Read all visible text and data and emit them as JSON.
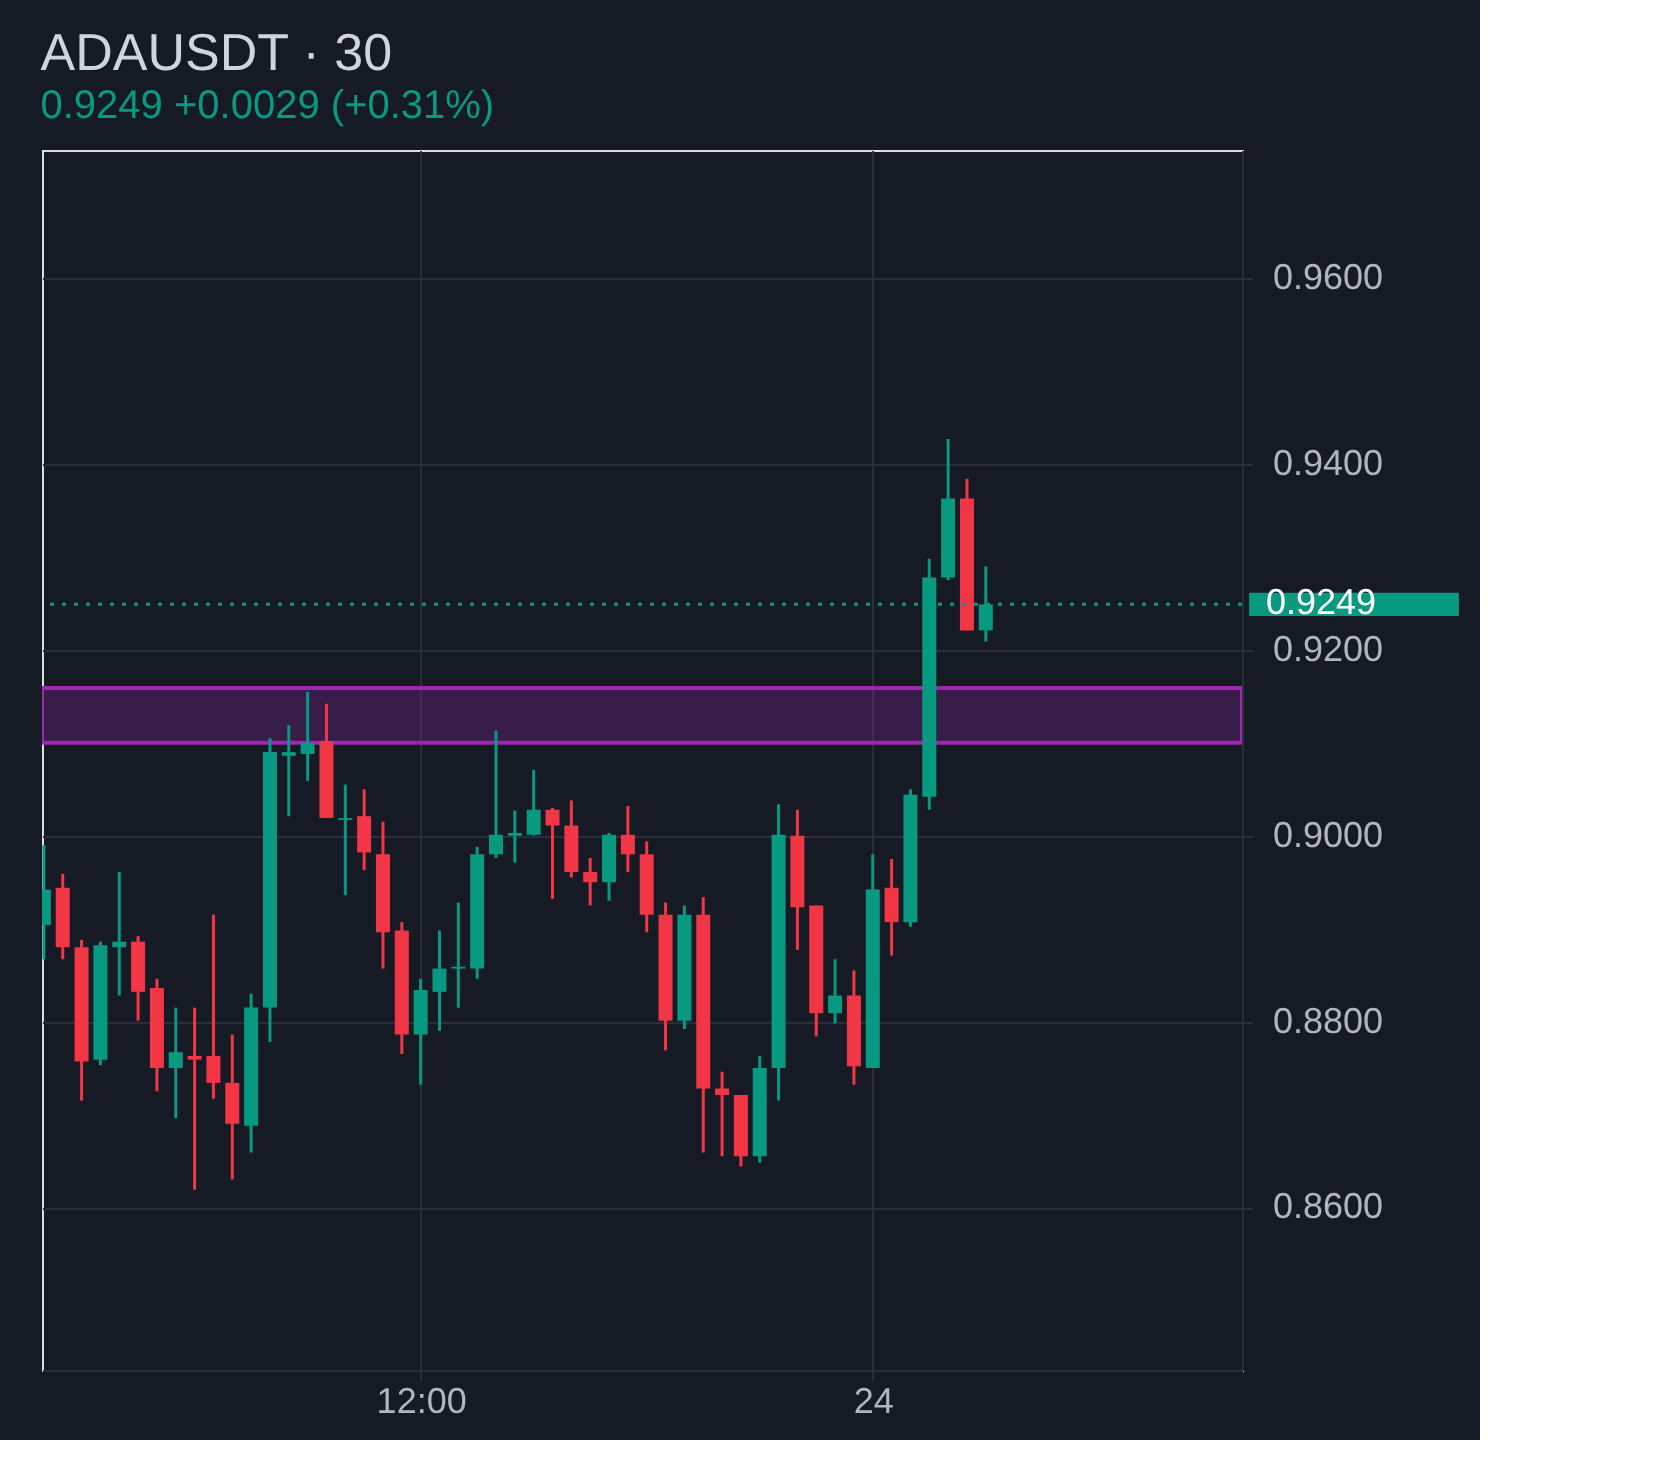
{
  "chart_data": {
    "type": "candlestick",
    "title": "ADAUSDT · 30",
    "subtitle": "0.9249  +0.0029 (+0.31%)",
    "x": [
      2,
      2.5,
      3,
      3.5,
      4,
      4.5,
      5,
      5.5,
      6,
      6.5,
      7,
      7.5,
      8,
      8.5,
      9,
      9.5,
      10,
      10.5,
      11,
      11.5,
      12,
      12.5,
      13,
      13.5,
      14,
      14.5,
      15,
      15.5,
      16,
      16.5,
      17,
      17.5,
      18,
      18.5,
      19,
      19.5,
      20,
      20.5,
      21,
      21.5,
      22,
      22.5,
      23,
      23.5,
      24,
      24.5,
      25,
      25.5,
      26,
      26.5,
      27
    ],
    "ohlc": [
      [
        0.8904,
        0.899,
        0.8867,
        0.8942
      ],
      [
        0.8944,
        0.8959,
        0.8867,
        0.888
      ],
      [
        0.888,
        0.8888,
        0.8715,
        0.8757
      ],
      [
        0.8759,
        0.8886,
        0.8753,
        0.8882
      ],
      [
        0.888,
        0.8961,
        0.8828,
        0.8886
      ],
      [
        0.8886,
        0.8892,
        0.8801,
        0.8832
      ],
      [
        0.8836,
        0.8846,
        0.8725,
        0.875
      ],
      [
        0.875,
        0.8815,
        0.8696,
        0.8767
      ],
      [
        0.8763,
        0.8815,
        0.8619,
        0.8759
      ],
      [
        0.8763,
        0.8915,
        0.8717,
        0.8734
      ],
      [
        0.8734,
        0.8786,
        0.863,
        0.869
      ],
      [
        0.8688,
        0.883,
        0.8659,
        0.8815
      ],
      [
        0.8815,
        0.9105,
        0.8778,
        0.909
      ],
      [
        0.9086,
        0.9119,
        0.9021,
        0.909
      ],
      [
        0.9088,
        0.9155,
        0.9059,
        0.91
      ],
      [
        0.9102,
        0.9142,
        0.9019,
        0.9019
      ],
      [
        0.9017,
        0.9055,
        0.8936,
        0.9019
      ],
      [
        0.9021,
        0.905,
        0.8963,
        0.8982
      ],
      [
        0.898,
        0.9015,
        0.8857,
        0.8896
      ],
      [
        0.8898,
        0.8907,
        0.8765,
        0.8786
      ],
      [
        0.8786,
        0.8846,
        0.8732,
        0.8834
      ],
      [
        0.8832,
        0.8898,
        0.879,
        0.8857
      ],
      [
        0.8857,
        0.8928,
        0.8815,
        0.8859
      ],
      [
        0.8857,
        0.8988,
        0.8846,
        0.898
      ],
      [
        0.898,
        0.9113,
        0.8976,
        0.9001
      ],
      [
        0.9,
        0.9027,
        0.8971,
        0.9003
      ],
      [
        0.9001,
        0.9071,
        0.9,
        0.9028
      ],
      [
        0.9028,
        0.903,
        0.8932,
        0.9011
      ],
      [
        0.9011,
        0.9038,
        0.8955,
        0.8961
      ],
      [
        0.8961,
        0.8976,
        0.8925,
        0.895
      ],
      [
        0.895,
        0.9003,
        0.893,
        0.9001
      ],
      [
        0.9001,
        0.9032,
        0.8961,
        0.898
      ],
      [
        0.898,
        0.8994,
        0.8896,
        0.8915
      ],
      [
        0.8915,
        0.8928,
        0.8769,
        0.8801
      ],
      [
        0.8801,
        0.8925,
        0.8792,
        0.8915
      ],
      [
        0.8915,
        0.8934,
        0.8659,
        0.8728
      ],
      [
        0.8728,
        0.8746,
        0.8655,
        0.8721
      ],
      [
        0.8721,
        0.8721,
        0.8644,
        0.8655
      ],
      [
        0.8655,
        0.8763,
        0.8648,
        0.875
      ],
      [
        0.875,
        0.9034,
        0.8715,
        0.9001
      ],
      [
        0.9,
        0.9028,
        0.8877,
        0.8923
      ],
      [
        0.8925,
        0.8925,
        0.8784,
        0.8809
      ],
      [
        0.8809,
        0.8867,
        0.8798,
        0.8828
      ],
      [
        0.8828,
        0.8855,
        0.8732,
        0.8752
      ],
      [
        0.875,
        0.898,
        0.875,
        0.8942
      ],
      [
        0.8944,
        0.8975,
        0.8871,
        0.8907
      ],
      [
        0.8907,
        0.905,
        0.8902,
        0.9044
      ],
      [
        0.9042,
        0.9298,
        0.9028,
        0.9278
      ],
      [
        0.9278,
        0.9427,
        0.9275,
        0.9363
      ],
      [
        0.9363,
        0.9384,
        0.9221,
        0.9221
      ],
      [
        0.9221,
        0.929,
        0.9209,
        0.9249
      ]
    ],
    "colors": [
      "#089981",
      "#f23645",
      "#f23645",
      "#089981",
      "#089981",
      "#f23645",
      "#f23645",
      "#089981",
      "#f23645",
      "#f23645",
      "#f23645",
      "#089981",
      "#089981",
      "#089981",
      "#089981",
      "#f23645",
      "#089981",
      "#f23645",
      "#f23645",
      "#f23645",
      "#089981",
      "#089981",
      "#089981",
      "#089981",
      "#089981",
      "#089981",
      "#089981",
      "#f23645",
      "#f23645",
      "#f23645",
      "#089981",
      "#f23645",
      "#f23645",
      "#f23645",
      "#089981",
      "#f23645",
      "#f23645",
      "#f23645",
      "#089981",
      "#089981",
      "#f23645",
      "#f23645",
      "#089981",
      "#f23645",
      "#089981",
      "#f23645",
      "#089981",
      "#089981",
      "#089981",
      "#f23645",
      "#089981"
    ],
    "xlim": [
      1.95,
      33.8
    ],
    "xticks": [
      {
        "value": 12,
        "label": "12:00"
      },
      {
        "value": 24,
        "label": "24"
      }
    ],
    "ylim": [
      0.8425,
      0.9738
    ],
    "yticks": [
      {
        "value": 0.86,
        "label": "0.8600"
      },
      {
        "value": 0.88,
        "label": "0.8800"
      },
      {
        "value": 0.9,
        "label": "0.9000"
      },
      {
        "value": 0.92,
        "label": "0.9200"
      },
      {
        "value": 0.94,
        "label": "0.9400"
      },
      {
        "value": 0.96,
        "label": "0.9600"
      }
    ],
    "ref_lines": [
      {
        "axis": "y",
        "value": 0.9249,
        "label": "0.9249",
        "color": "#089981",
        "line_style": "dotted"
      }
    ],
    "bands": [
      {
        "axis": "y",
        "from": 0.91,
        "to": 0.9159,
        "color": "#9c27b0"
      }
    ],
    "grid": true
  }
}
